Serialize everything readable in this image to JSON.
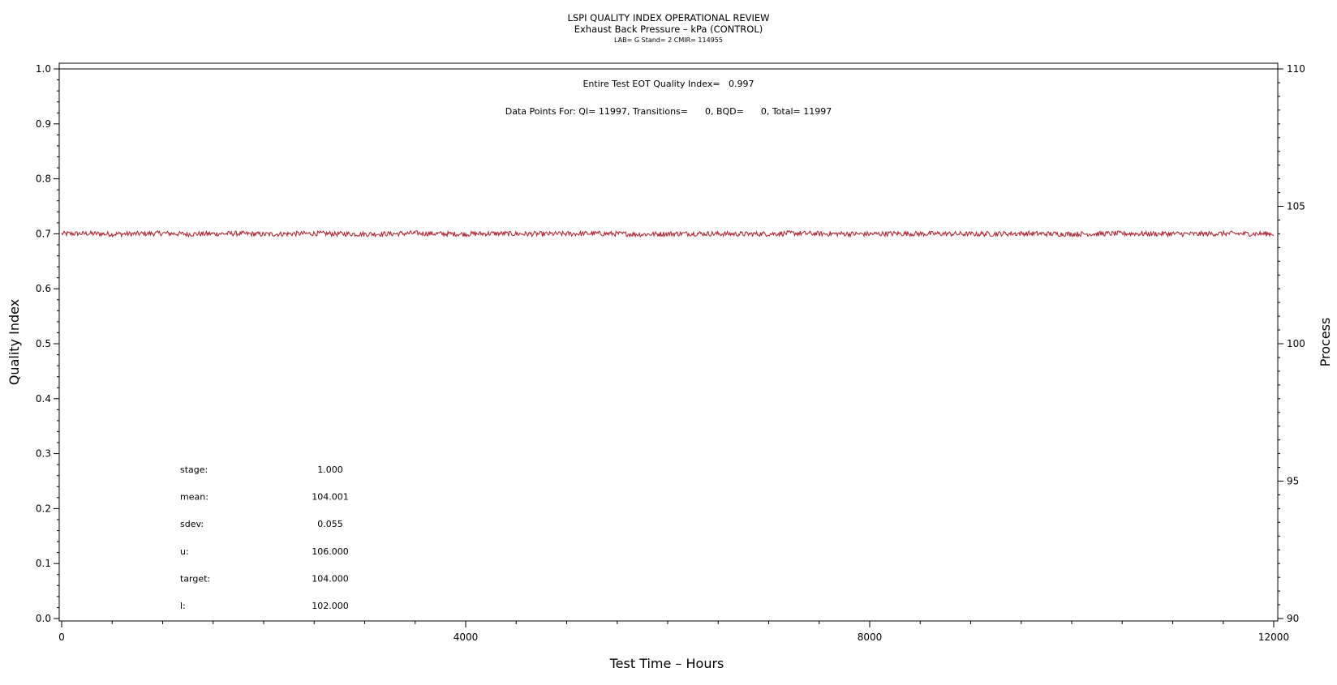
{
  "title": "LSPI QUALITY INDEX OPERATIONAL REVIEW",
  "subtitle": "Exhaust Back Pressure – kPa (CONTROL)",
  "meta_line": "LAB= G Stand= 2 CMIR= 114955",
  "annotations": {
    "eot_quality": "Entire Test EOT Quality Index=   0.997",
    "data_points": "Data Points For: QI= 11997, Transitions=      0, BQD=      0, Total= 11997"
  },
  "stats": [
    {
      "label": "stage:",
      "value": "1.000"
    },
    {
      "label": "mean:",
      "value": "104.001"
    },
    {
      "label": "sdev:",
      "value": "0.055"
    },
    {
      "label": "u:",
      "value": "106.000"
    },
    {
      "label": "target:",
      "value": "104.000"
    },
    {
      "label": "l:",
      "value": "102.000"
    }
  ],
  "colors": {
    "series": "#b01c2e",
    "axis": "#000000"
  },
  "chart_data": {
    "type": "line",
    "title": "LSPI QUALITY INDEX OPERATIONAL REVIEW",
    "subtitle": "Exhaust Back Pressure – kPa (CONTROL)",
    "xlabel": "Test Time – Hours",
    "ylabel": "Quality Index",
    "y2label": "Process",
    "xlim": [
      0,
      12000
    ],
    "ylim": [
      0.0,
      1.0
    ],
    "y2lim": [
      90,
      110
    ],
    "x_ticks": [
      "0",
      "4000",
      "8000",
      "12000"
    ],
    "y_ticks": [
      "0.0",
      "0.1",
      "0.2",
      "0.3",
      "0.4",
      "0.5",
      "0.6",
      "0.7",
      "0.8",
      "0.9",
      "1.0"
    ],
    "y2_ticks": [
      "90",
      "95",
      "100",
      "105",
      "110"
    ],
    "reference_lines": [
      {
        "axis": "y",
        "value": 1.0
      }
    ],
    "series": [
      {
        "axis": "y2",
        "mean": 104.001,
        "sdev": 0.055,
        "x": [
          0,
          250,
          500,
          750,
          1000,
          1250,
          1500,
          1750,
          2000,
          2250,
          2500,
          2750,
          3000,
          3250,
          3500,
          3750,
          4000,
          4250,
          4500,
          4750,
          5000,
          5250,
          5500,
          5750,
          6000,
          6250,
          6500,
          6750,
          7000,
          7250,
          7500,
          7750,
          8000,
          8250,
          8500,
          8750,
          9000,
          9250,
          9500,
          9750,
          10000,
          10250,
          10500,
          10750,
          11000,
          11250,
          11500,
          11750,
          12000
        ],
        "values": [
          104.0,
          104.01,
          103.99,
          104.0,
          104.02,
          103.99,
          104.0,
          104.01,
          103.98,
          104.0,
          104.01,
          104.0,
          103.99,
          104.0,
          104.02,
          104.0,
          103.99,
          104.01,
          104.0,
          103.99,
          104.0,
          104.01,
          104.0,
          103.98,
          104.0,
          104.01,
          104.0,
          103.99,
          104.0,
          104.02,
          104.0,
          104.0,
          103.99,
          104.01,
          104.0,
          104.0,
          103.99,
          104.0,
          104.01,
          104.0,
          103.99,
          104.0,
          104.01,
          104.0,
          104.0,
          103.99,
          104.01,
          104.0,
          104.0
        ]
      }
    ]
  }
}
